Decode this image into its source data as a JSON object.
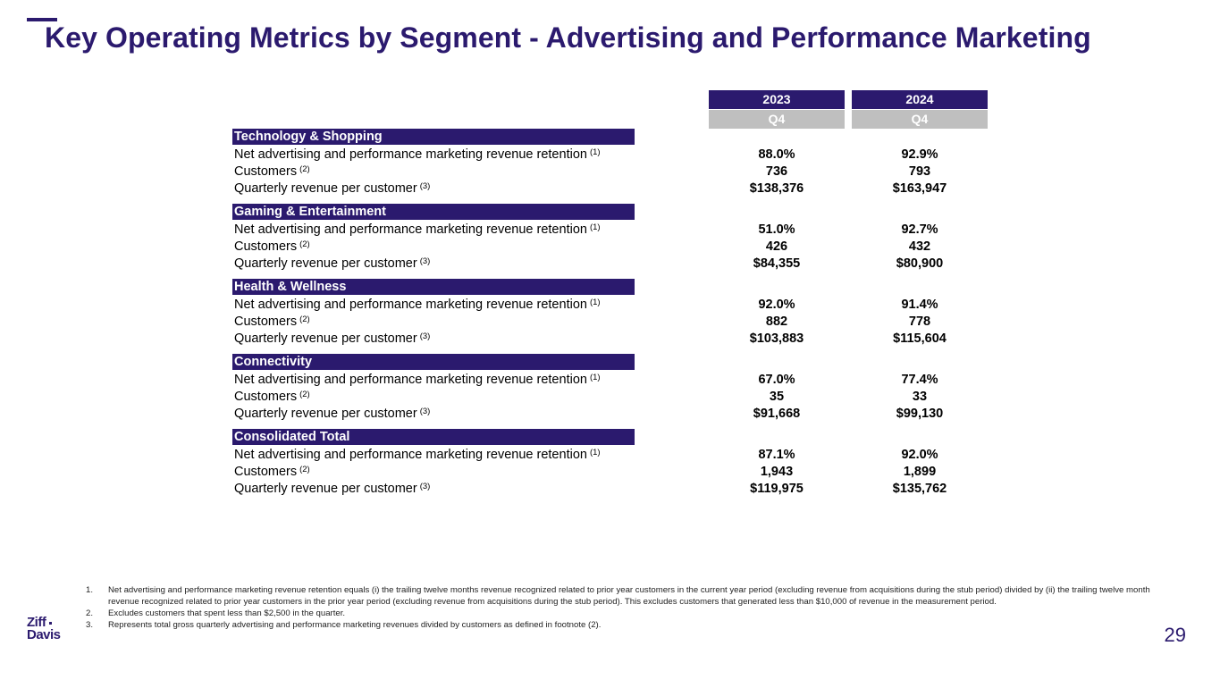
{
  "title": "Key Operating Metrics by Segment - Advertising and Performance Marketing",
  "columns": [
    {
      "year": "2023",
      "quarter": "Q4"
    },
    {
      "year": "2024",
      "quarter": "Q4"
    }
  ],
  "segments": [
    {
      "name": "Technology & Shopping",
      "rows": [
        {
          "label": "Net advertising and performance marketing revenue retention",
          "sup": "(1)",
          "v2023": "88.0%",
          "v2024": "92.9%"
        },
        {
          "label": "Customers",
          "sup": "(2)",
          "v2023": "736",
          "v2024": "793"
        },
        {
          "label": "Quarterly revenue per customer",
          "sup": "(3)",
          "v2023": "$138,376",
          "v2024": "$163,947"
        }
      ]
    },
    {
      "name": "Gaming & Entertainment",
      "rows": [
        {
          "label": "Net advertising and performance marketing revenue retention",
          "sup": "(1)",
          "v2023": "51.0%",
          "v2024": "92.7%"
        },
        {
          "label": "Customers",
          "sup": "(2)",
          "v2023": "426",
          "v2024": "432"
        },
        {
          "label": "Quarterly revenue per customer",
          "sup": "(3)",
          "v2023": "$84,355",
          "v2024": "$80,900"
        }
      ]
    },
    {
      "name": "Health & Wellness",
      "rows": [
        {
          "label": "Net advertising and performance marketing revenue retention",
          "sup": "(1)",
          "v2023": "92.0%",
          "v2024": "91.4%"
        },
        {
          "label": "Customers",
          "sup": "(2)",
          "v2023": "882",
          "v2024": "778"
        },
        {
          "label": "Quarterly revenue per customer",
          "sup": "(3)",
          "v2023": "$103,883",
          "v2024": "$115,604"
        }
      ]
    },
    {
      "name": "Connectivity",
      "rows": [
        {
          "label": "Net advertising and performance marketing revenue retention",
          "sup": "(1)",
          "v2023": "67.0%",
          "v2024": "77.4%"
        },
        {
          "label": "Customers",
          "sup": "(2)",
          "v2023": "35",
          "v2024": "33"
        },
        {
          "label": "Quarterly revenue per customer",
          "sup": "(3)",
          "v2023": "$91,668",
          "v2024": "$99,130"
        }
      ]
    },
    {
      "name": "Consolidated Total",
      "rows": [
        {
          "label": "Net advertising and performance marketing revenue retention",
          "sup": "(1)",
          "v2023": "87.1%",
          "v2024": "92.0%"
        },
        {
          "label": "Customers",
          "sup": "(2)",
          "v2023": "1,943",
          "v2024": "1,899"
        },
        {
          "label": "Quarterly revenue per customer",
          "sup": "(3)",
          "v2023": "$119,975",
          "v2024": "$135,762"
        }
      ]
    }
  ],
  "footnotes": [
    {
      "num": "1.",
      "text": "Net advertising and performance marketing revenue retention equals (i) the trailing twelve months revenue recognized related to prior year customers in the current year period (excluding revenue from acquisitions during the stub period) divided by (ii) the trailing twelve month revenue recognized related to prior year customers in the prior year period (excluding revenue from acquisitions during the stub period). This excludes customers that generated less than $10,000 of revenue in the measurement period."
    },
    {
      "num": "2.",
      "text": "Excludes customers that spent less than $2,500 in the quarter."
    },
    {
      "num": "3.",
      "text": "Represents total gross quarterly advertising and performance marketing revenues divided by customers as defined in footnote (2)."
    }
  ],
  "logo": {
    "line1": "Ziff",
    "line2": "Davis"
  },
  "page_number": "29",
  "colors": {
    "brand": "#2b1a6e",
    "quarter_header": "#bfbfbf"
  }
}
